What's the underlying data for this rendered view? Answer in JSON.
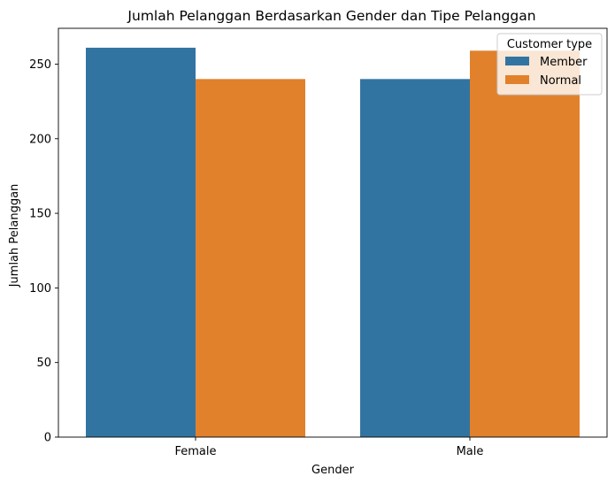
{
  "chart_data": {
    "type": "bar",
    "title": "Jumlah Pelanggan Berdasarkan Gender dan Tipe Pelanggan",
    "xlabel": "Gender",
    "ylabel": "Jumlah Pelanggan",
    "categories": [
      "Female",
      "Male"
    ],
    "series": [
      {
        "name": "Member",
        "values": [
          261,
          240
        ],
        "color": "#3274a1"
      },
      {
        "name": "Normal",
        "values": [
          240,
          259
        ],
        "color": "#e1812c"
      }
    ],
    "ylim": [
      0,
      274
    ],
    "yticks": [
      0,
      50,
      100,
      150,
      200,
      250
    ],
    "grid": false,
    "legend": {
      "title": "Customer type",
      "position": "top-right"
    }
  }
}
